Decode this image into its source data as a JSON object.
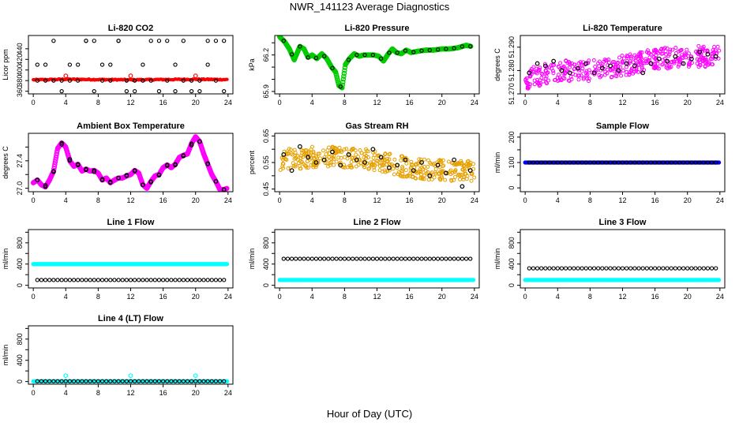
{
  "page": {
    "title": "NWR_141123  Average Diagnostics",
    "x_axis_title": "Hour of Day (UTC)"
  },
  "chart_data": [
    {
      "id": "co2",
      "type": "scatter",
      "title": "Li-820 CO2",
      "ylabel": "Licor ppm",
      "xlim": [
        -0.6,
        24.6
      ],
      "ylim": [
        355,
        465
      ],
      "yticks": [
        360,
        380,
        400,
        420,
        440
      ],
      "xticks": [
        0,
        4,
        8,
        12,
        16,
        20,
        24
      ],
      "xlabel": "",
      "series": [
        {
          "name": "average",
          "color": "#ff0000",
          "style": "band",
          "x": [
            0.3,
            4,
            8,
            12,
            16,
            20,
            23.7
          ],
          "y": [
            381.5,
            382.5,
            382.0,
            381.5,
            382.0,
            382.5,
            382.0
          ]
        },
        {
          "name": "hourly",
          "color": "#000000",
          "style": "grid-pattern",
          "levels": [
            360,
            380,
            410,
            455
          ]
        },
        {
          "name": "outliers",
          "color": "#ff0000",
          "style": "points",
          "x": [
            4,
            12,
            20
          ],
          "y": [
            389,
            389,
            389
          ]
        }
      ]
    },
    {
      "id": "pressure",
      "type": "scatter",
      "title": "Li-820 Pressure",
      "ylabel": "kPa",
      "xlim": [
        -0.6,
        24.6
      ],
      "ylim": [
        65.88,
        66.36
      ],
      "yticks": [
        65.9,
        66.0,
        66.1,
        66.2,
        66.3
      ],
      "ytick_labels": [
        "65.9",
        "",
        "",
        "66.2",
        ""
      ],
      "xticks": [
        0,
        4,
        8,
        12,
        16,
        20,
        24
      ],
      "xlabel": "",
      "series": [
        {
          "name": "average",
          "color": "#00cc00",
          "style": "thick-line",
          "x": [
            0,
            0.6,
            1.2,
            1.8,
            2.5,
            3.0,
            3.5,
            4.0,
            4.6,
            5.2,
            5.8,
            6.4,
            6.9,
            7.3,
            7.7,
            8.1,
            8.6,
            9.2,
            9.8,
            10.4,
            11.0,
            11.6,
            12.2,
            12.8,
            13.4,
            13.9,
            14.4,
            15.0,
            15.6,
            16.2,
            17.0,
            18.0,
            19.0,
            20.0,
            21.0,
            22.0,
            23.0,
            23.6
          ],
          "y": [
            66.35,
            66.31,
            66.25,
            66.16,
            66.27,
            66.25,
            66.18,
            66.2,
            66.17,
            66.21,
            66.17,
            66.1,
            66.06,
            65.95,
            65.93,
            66.12,
            66.17,
            66.21,
            66.19,
            66.2,
            66.2,
            66.2,
            66.19,
            66.15,
            66.21,
            66.25,
            66.22,
            66.21,
            66.24,
            66.22,
            66.23,
            66.24,
            66.24,
            66.25,
            66.25,
            66.26,
            66.28,
            66.27
          ]
        }
      ]
    },
    {
      "id": "licor_temp",
      "type": "scatter",
      "title": "Li-820 Temperature",
      "ylabel": "degrees C",
      "xlim": [
        -0.6,
        24.6
      ],
      "ylim": [
        51.27,
        51.295
      ],
      "yticks": [
        51.27,
        51.28,
        51.29
      ],
      "ytick_labels": [
        "51.270",
        "51.280",
        "51.290"
      ],
      "xticks": [
        0,
        4,
        8,
        12,
        16,
        20,
        24
      ],
      "xlabel": "",
      "series": [
        {
          "name": "average",
          "color": "#ff00ff",
          "style": "scatter-cloud",
          "x": [
            0,
            4,
            8,
            12,
            16,
            20,
            24
          ],
          "y": [
            51.276,
            51.28,
            51.28,
            51.282,
            51.285,
            51.286,
            51.286
          ]
        },
        {
          "name": "hourly",
          "color": "#000000",
          "style": "points",
          "x": [
            0.5,
            1.5,
            2.5,
            3.5,
            4.5,
            5.5,
            6.5,
            7.5,
            8.5,
            9.5,
            10.5,
            11.5,
            12.5,
            13.5,
            14.5,
            15.5,
            16.5,
            17.5,
            18.5,
            19.5,
            20.5,
            21.5,
            22.5,
            23.5
          ],
          "y": [
            51.279,
            51.283,
            51.282,
            51.284,
            51.28,
            51.279,
            51.281,
            51.283,
            51.279,
            51.281,
            51.282,
            51.28,
            51.283,
            51.282,
            51.279,
            51.283,
            51.285,
            51.284,
            51.286,
            51.283,
            51.285,
            51.288,
            51.287,
            51.286
          ]
        }
      ]
    },
    {
      "id": "ambient_temp",
      "type": "line",
      "title": "Ambient Box Temperature",
      "ylabel": "degrees C",
      "xlim": [
        -0.6,
        24.6
      ],
      "ylim": [
        26.95,
        27.8
      ],
      "yticks": [
        27.0,
        27.2,
        27.4,
        27.6
      ],
      "ytick_labels": [
        "27.0",
        "",
        "27.4",
        ""
      ],
      "xticks": [
        0,
        4,
        8,
        12,
        16,
        20,
        24
      ],
      "xlabel": "",
      "series": [
        {
          "name": "average",
          "color": "#ff00ff",
          "style": "thick-line",
          "x": [
            0,
            0.5,
            1.0,
            1.5,
            2.0,
            2.5,
            3.0,
            3.5,
            4.0,
            4.5,
            5.0,
            5.5,
            6.0,
            6.5,
            7.0,
            7.5,
            8.0,
            8.5,
            9.0,
            9.5,
            10.0,
            10.5,
            11.0,
            11.5,
            12.0,
            12.5,
            13.0,
            13.5,
            14.0,
            14.5,
            15.0,
            15.5,
            16.0,
            16.5,
            17.0,
            17.5,
            18.0,
            18.5,
            19.0,
            19.5,
            20.0,
            20.5,
            21.0,
            21.5,
            22.0,
            22.5,
            23.0,
            23.5,
            23.9
          ],
          "y": [
            27.08,
            27.12,
            27.05,
            27.02,
            27.12,
            27.25,
            27.58,
            27.66,
            27.6,
            27.4,
            27.32,
            27.35,
            27.25,
            27.28,
            27.25,
            27.26,
            27.22,
            27.12,
            27.15,
            27.08,
            27.12,
            27.15,
            27.15,
            27.18,
            27.2,
            27.26,
            27.22,
            27.05,
            27.0,
            27.1,
            27.18,
            27.2,
            27.3,
            27.34,
            27.3,
            27.35,
            27.45,
            27.48,
            27.5,
            27.65,
            27.75,
            27.68,
            27.5,
            27.35,
            27.2,
            27.1,
            26.98,
            26.98,
            27.0
          ]
        },
        {
          "name": "hourly",
          "color": "#000000",
          "style": "points",
          "x": [
            0.5,
            1.5,
            2.5,
            3.5,
            4.5,
            5.5,
            6.5,
            7.5,
            8.5,
            9.5,
            10.5,
            11.5,
            12.5,
            13.5,
            14.5,
            15.5,
            16.5,
            17.5,
            18.5,
            19.5,
            20.5,
            21.5,
            22.5,
            23.5
          ],
          "y": [
            27.12,
            27.04,
            27.24,
            27.64,
            27.42,
            27.34,
            27.27,
            27.24,
            27.13,
            27.09,
            27.15,
            27.19,
            27.25,
            27.05,
            27.09,
            27.19,
            27.33,
            27.34,
            27.47,
            27.63,
            27.68,
            27.36,
            27.1,
            26.98
          ]
        }
      ]
    },
    {
      "id": "gas_rh",
      "type": "scatter",
      "title": "Gas Stream RH",
      "ylabel": "percent",
      "xlim": [
        -0.6,
        24.6
      ],
      "ylim": [
        0.44,
        0.66
      ],
      "yticks": [
        0.45,
        0.5,
        0.55,
        0.6,
        0.65
      ],
      "ytick_labels": [
        "0.45",
        "",
        "0.55",
        "",
        "0.65"
      ],
      "xticks": [
        0,
        4,
        8,
        12,
        16,
        20,
        24
      ],
      "xlabel": "",
      "series": [
        {
          "name": "average",
          "color": "#e6a000",
          "style": "scatter-cloud",
          "x": [
            0,
            4,
            8,
            12,
            16,
            20,
            24
          ],
          "y": [
            0.56,
            0.57,
            0.57,
            0.56,
            0.53,
            0.52,
            0.52
          ]
        },
        {
          "name": "hourly",
          "color": "#000000",
          "style": "points",
          "x": [
            0.5,
            1.5,
            2.5,
            3.5,
            4.5,
            5.5,
            6.5,
            7.5,
            8.5,
            9.5,
            10.5,
            11.5,
            12.5,
            13.5,
            14.5,
            15.5,
            16.5,
            17.5,
            18.5,
            19.5,
            20.5,
            21.5,
            22.5,
            23.5
          ],
          "y": [
            0.58,
            0.52,
            0.61,
            0.57,
            0.55,
            0.56,
            0.59,
            0.54,
            0.58,
            0.56,
            0.55,
            0.6,
            0.57,
            0.53,
            0.54,
            0.56,
            0.52,
            0.55,
            0.5,
            0.54,
            0.51,
            0.56,
            0.46,
            0.52
          ]
        }
      ]
    },
    {
      "id": "sample_flow",
      "type": "scatter",
      "title": "Sample Flow",
      "ylabel": "ml/min",
      "xlim": [
        -0.6,
        24.6
      ],
      "ylim": [
        -15,
        215
      ],
      "yticks": [
        0,
        50,
        100,
        150,
        200
      ],
      "ytick_labels": [
        "0",
        "",
        "100",
        "",
        "200"
      ],
      "xticks": [
        0,
        4,
        8,
        12,
        16,
        20,
        24
      ],
      "xlabel": "",
      "series": [
        {
          "name": "average",
          "color": "#0000ff",
          "style": "flat",
          "level": 100
        },
        {
          "name": "hourly",
          "color": "#000000",
          "style": "flat-points",
          "level": 100
        }
      ]
    },
    {
      "id": "line1",
      "type": "scatter",
      "title": "Line 1 Flow",
      "ylabel": "ml/min",
      "xlim": [
        -0.6,
        24.6
      ],
      "ylim": [
        -50,
        1050
      ],
      "yticks": [
        0,
        200,
        400,
        600,
        800,
        1000
      ],
      "ytick_labels": [
        "0",
        "",
        "400",
        "",
        "800",
        ""
      ],
      "xticks": [
        0,
        4,
        8,
        12,
        16,
        20,
        24
      ],
      "xlabel": "",
      "series": [
        {
          "name": "average",
          "color": "#00ffff",
          "style": "flat",
          "level": 400
        },
        {
          "name": "hourly",
          "color": "#000000",
          "style": "flat-points",
          "level": 100
        }
      ]
    },
    {
      "id": "line2",
      "type": "scatter",
      "title": "Line 2 Flow",
      "ylabel": "ml/min",
      "xlim": [
        -0.6,
        24.6
      ],
      "ylim": [
        -50,
        1050
      ],
      "yticks": [
        0,
        200,
        400,
        600,
        800,
        1000
      ],
      "ytick_labels": [
        "0",
        "",
        "400",
        "",
        "800",
        ""
      ],
      "xticks": [
        0,
        4,
        8,
        12,
        16,
        20,
        24
      ],
      "xlabel": "",
      "series": [
        {
          "name": "average",
          "color": "#00ffff",
          "style": "flat",
          "level": 100
        },
        {
          "name": "hourly",
          "color": "#000000",
          "style": "flat-points",
          "level": 500
        }
      ]
    },
    {
      "id": "line3",
      "type": "scatter",
      "title": "Line 3 Flow",
      "ylabel": "ml/min",
      "xlim": [
        -0.6,
        24.6
      ],
      "ylim": [
        -50,
        1050
      ],
      "yticks": [
        0,
        200,
        400,
        600,
        800,
        1000
      ],
      "ytick_labels": [
        "0",
        "",
        "400",
        "",
        "800",
        ""
      ],
      "xticks": [
        0,
        4,
        8,
        12,
        16,
        20,
        24
      ],
      "xlabel": "",
      "series": [
        {
          "name": "average",
          "color": "#00ffff",
          "style": "flat",
          "level": 100
        },
        {
          "name": "hourly",
          "color": "#000000",
          "style": "flat-points",
          "level": 320
        }
      ]
    },
    {
      "id": "line4",
      "type": "scatter",
      "title": "Line 4 (LT) Flow",
      "ylabel": "ml/min",
      "xlim": [
        -0.6,
        24.6
      ],
      "ylim": [
        -50,
        1050
      ],
      "yticks": [
        0,
        200,
        400,
        600,
        800,
        1000
      ],
      "ytick_labels": [
        "0",
        "",
        "400",
        "",
        "800",
        ""
      ],
      "xticks": [
        0,
        4,
        8,
        12,
        16,
        20,
        24
      ],
      "xlabel": "",
      "series": [
        {
          "name": "average",
          "color": "#00ffff",
          "style": "flat",
          "level": 5
        },
        {
          "name": "hourly",
          "color": "#000000",
          "style": "flat-points",
          "level": 5
        },
        {
          "name": "outliers",
          "color": "#00ffff",
          "style": "points",
          "x": [
            4,
            12,
            20
          ],
          "y": [
            110,
            110,
            110
          ]
        }
      ]
    }
  ]
}
